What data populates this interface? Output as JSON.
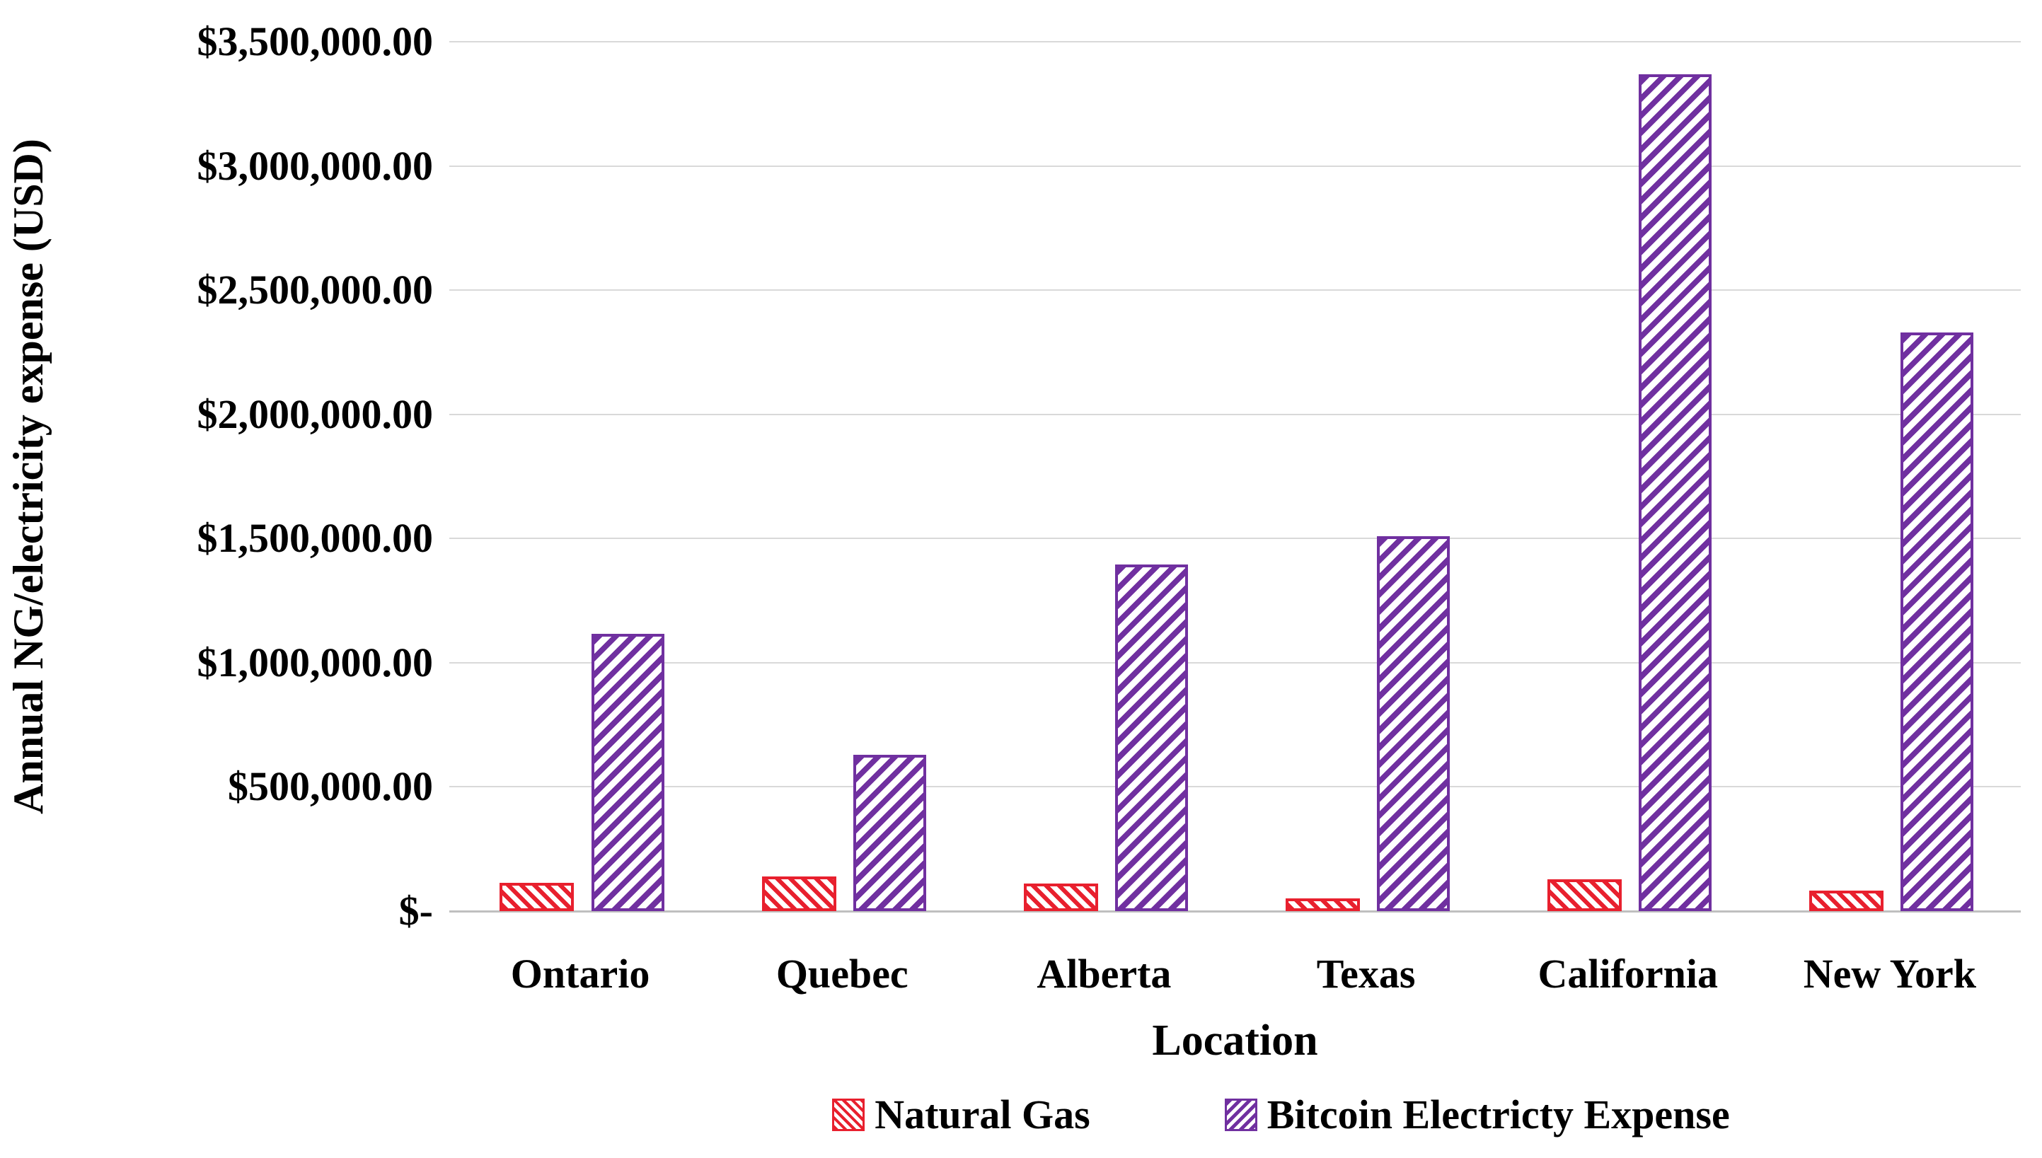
{
  "chart_data": {
    "type": "bar",
    "title": "",
    "categories": [
      "Ontario",
      "Quebec",
      "Alberta",
      "Texas",
      "California",
      "New York"
    ],
    "series": [
      {
        "name": "Natural Gas",
        "color": "#e8202e",
        "hatch": "\\",
        "values": [
          115000,
          140000,
          110000,
          52000,
          128000,
          83000
        ]
      },
      {
        "name": "Bitcoin Electricty Expense",
        "color": "#7030a0",
        "hatch": "/",
        "values": [
          1115000,
          628000,
          1395000,
          1510000,
          3370000,
          2330000
        ]
      }
    ],
    "xlabel": "Location",
    "ylabel": "Annual NG/electricity expense (USD)",
    "ylim": [
      0,
      3500000
    ],
    "ytick_step": 500000,
    "ytick_labels": [
      "$-",
      "$500,000.00",
      "$1,000,000.00",
      "$1,500,000.00",
      "$2,000,000.00",
      "$2,500,000.00",
      "$3,000,000.00",
      "$3,500,000.00"
    ],
    "grid": true,
    "gridline_color": "#d9d9d9",
    "axisline_color": "#bfbfbf",
    "legend_position": "bottom"
  }
}
